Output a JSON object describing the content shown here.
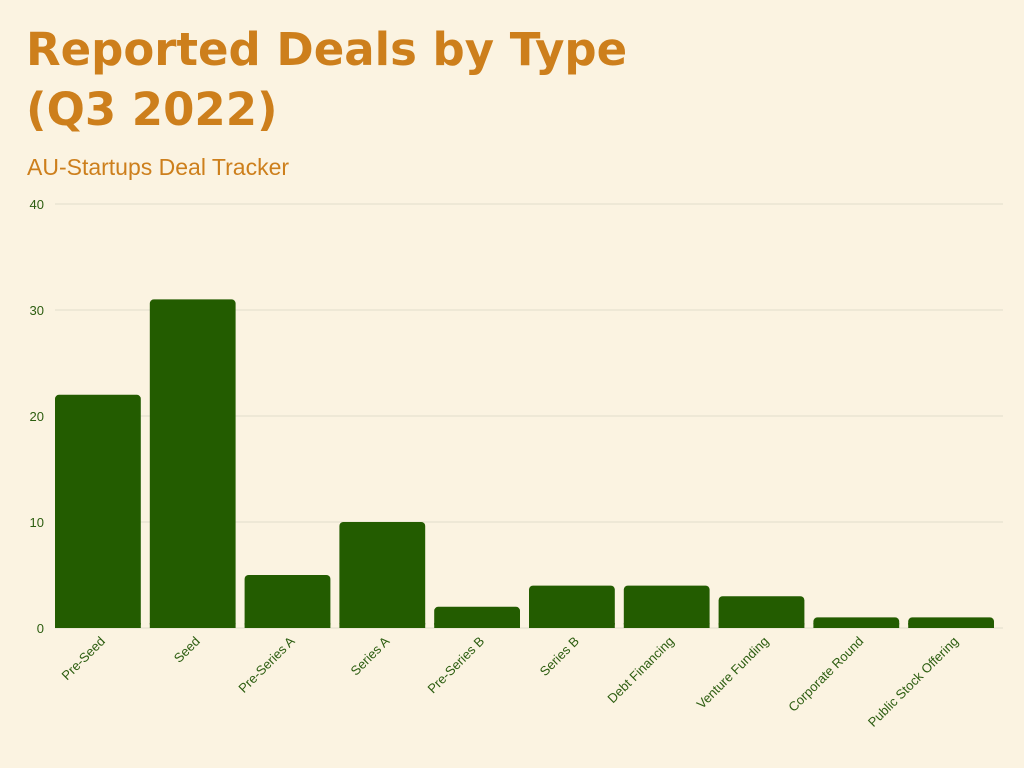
{
  "title": "Reported Deals by Type (Q3 2022)",
  "subtitle": "AU-Startups Deal Tracker",
  "colors": {
    "background": "#fbf3e1",
    "title": "#cd7f1c",
    "bar": "#235c00",
    "tick": "#2c5d10",
    "grid": "#e1dccb"
  },
  "chart_data": {
    "type": "bar",
    "title": "Reported Deals by Type (Q3 2022)",
    "subtitle": "AU-Startups Deal Tracker",
    "categories": [
      "Pre-Seed",
      "Seed",
      "Pre-Series A",
      "Series A",
      "Pre-Series B",
      "Series B",
      "Debt Financing",
      "Venture Funding",
      "Corporate Round",
      "Public Stock Offering"
    ],
    "values": [
      22,
      31,
      5,
      10,
      2,
      4,
      4,
      3,
      1,
      1
    ],
    "xlabel": "",
    "ylabel": "",
    "ylim": [
      0,
      40
    ],
    "yticks": [
      0,
      10,
      20,
      30,
      40
    ],
    "grid": true,
    "legend": "none"
  }
}
